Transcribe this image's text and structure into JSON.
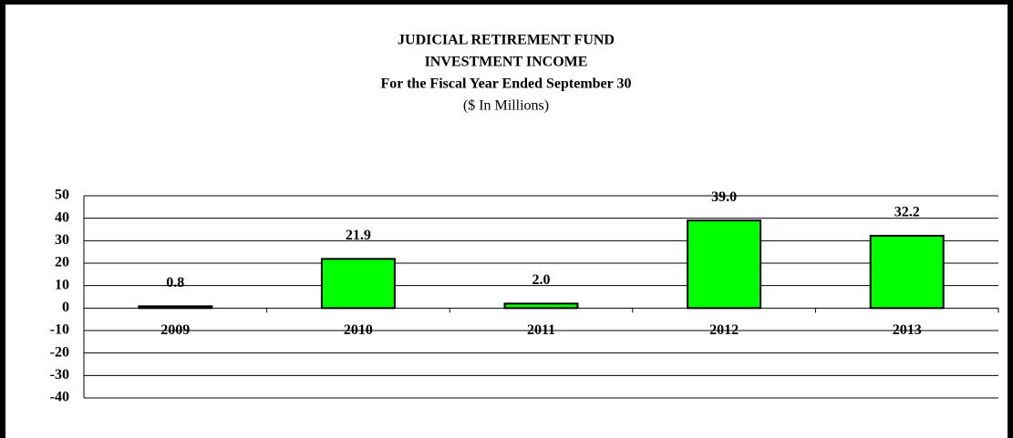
{
  "chart_data": {
    "type": "bar",
    "title_lines": [
      "JUDICIAL RETIREMENT FUND",
      "INVESTMENT INCOME",
      "For the Fiscal Year Ended September 30"
    ],
    "subtitle": "($ In Millions)",
    "categories": [
      "2009",
      "2010",
      "2011",
      "2012",
      "2013"
    ],
    "values": [
      0.8,
      21.9,
      2.0,
      39.0,
      32.2
    ],
    "value_labels": [
      "0.8",
      "21.9",
      "2.0",
      "39.0",
      "32.2"
    ],
    "color": "#00ff00",
    "ylim": [
      -40,
      50
    ],
    "yticks": [
      -40,
      -30,
      -20,
      -10,
      0,
      10,
      20,
      30,
      40,
      50
    ],
    "grid": true
  }
}
